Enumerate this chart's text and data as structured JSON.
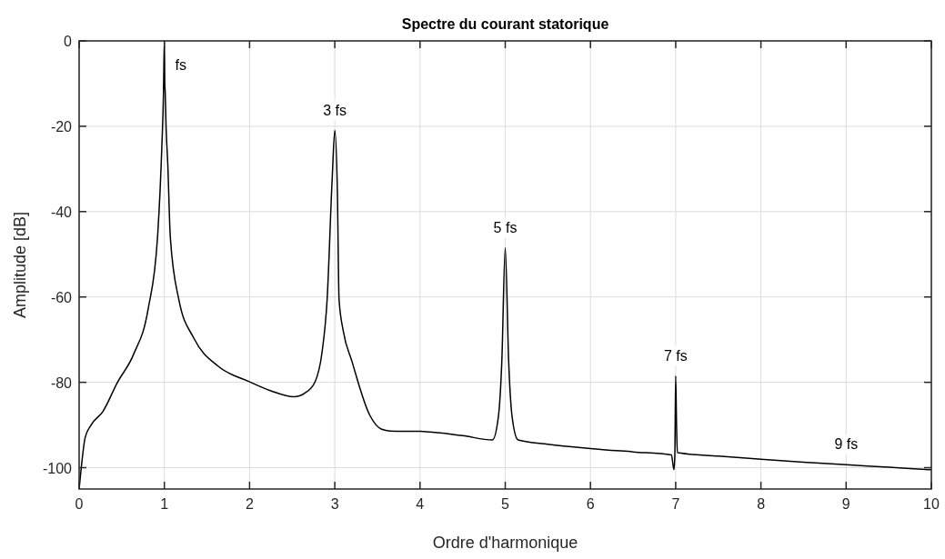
{
  "chart_data": {
    "type": "line",
    "title": "Spectre du courant statorique",
    "xlabel": "Ordre d'harmonique",
    "ylabel": "Amplitude [dB]",
    "xlim": [
      0,
      10
    ],
    "ylim": [
      -105,
      0
    ],
    "xticks": [
      0,
      1,
      2,
      3,
      4,
      5,
      6,
      7,
      8,
      9,
      10
    ],
    "yticks": [
      -100,
      -80,
      -60,
      -40,
      -20,
      0
    ],
    "grid": true,
    "line_style": "solid",
    "marker": "none",
    "series": [
      {
        "color": "#000000",
        "x": [
          0,
          0.02,
          0.07,
          0.14,
          0.28,
          0.45,
          0.64,
          0.81,
          0.92,
          0.97,
          0.99,
          1,
          1.005,
          1.01,
          1.02,
          1.04,
          1.07,
          1.17,
          1.35,
          1.63,
          1.99,
          2.25,
          2.52,
          2.65,
          2.77,
          2.85,
          2.91,
          2.97,
          3,
          3.03,
          3.05,
          3.1,
          3.2,
          3.41,
          3.55,
          3.65,
          4,
          4.5,
          4.85,
          4.92,
          4.96,
          5,
          5.04,
          5.08,
          5.15,
          5.5,
          6,
          6.5,
          6.95,
          6.98,
          6.99,
          7,
          7.01,
          7.02,
          7.5,
          8,
          8.5,
          9,
          9.5,
          10
        ],
        "values": [
          -105,
          -101,
          -93,
          -90,
          -86.8,
          -80,
          -73.4,
          -62.8,
          -46,
          -25,
          -12,
          0,
          -10,
          -12,
          -20,
          -28.7,
          -46,
          -60.6,
          -69.8,
          -76.2,
          -79.8,
          -82,
          -83.4,
          -82.5,
          -79.8,
          -73,
          -60.6,
          -32,
          -21,
          -35,
          -60.6,
          -68,
          -75,
          -87.7,
          -91,
          -91.4,
          -91.5,
          -92.5,
          -93.5,
          -88,
          -75,
          -48.5,
          -75,
          -88,
          -93.5,
          -94.5,
          -95.5,
          -96.3,
          -97,
          -100.5,
          -97,
          -78.5,
          -90,
          -96.5,
          -97.3,
          -98,
          -98.7,
          -99.3,
          -99.9,
          -100.5
        ]
      }
    ],
    "annotations": [
      {
        "text": "fs",
        "x": 1,
        "y": 0
      },
      {
        "text": "3 fs",
        "x": 3,
        "y": -21
      },
      {
        "text": "5 fs",
        "x": 5,
        "y": -48.5
      },
      {
        "text": "7 fs",
        "x": 7,
        "y": -78.5
      },
      {
        "text": "9 fs",
        "x": 9,
        "y": -99.3
      }
    ]
  }
}
